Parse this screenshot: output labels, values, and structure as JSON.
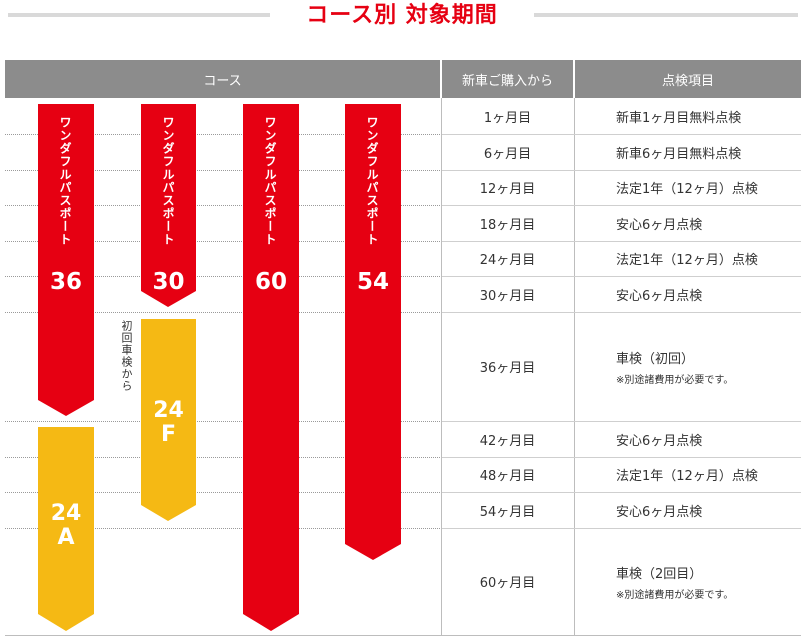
{
  "title": "コース別 対象期間",
  "header": {
    "course": "コース",
    "months": "新車ご購入から",
    "items": "点検項目"
  },
  "rows": [
    {
      "month": "1ヶ月目",
      "item": "新車1ヶ月目無料点検",
      "note": ""
    },
    {
      "month": "6ヶ月目",
      "item": "新車6ヶ月目無料点検",
      "note": ""
    },
    {
      "month": "12ヶ月目",
      "item": "法定1年（12ヶ月）点検",
      "note": ""
    },
    {
      "month": "18ヶ月目",
      "item": "安心6ヶ月点検",
      "note": ""
    },
    {
      "month": "24ヶ月目",
      "item": "法定1年（12ヶ月）点検",
      "note": ""
    },
    {
      "month": "30ヶ月目",
      "item": "安心6ヶ月点検",
      "note": ""
    },
    {
      "month": "36ヶ月目",
      "item": "車検（初回）",
      "note": "※別途諸費用が必要です。"
    },
    {
      "month": "42ヶ月目",
      "item": "安心6ヶ月点検",
      "note": ""
    },
    {
      "month": "48ヶ月目",
      "item": "法定1年（12ヶ月）点検",
      "note": ""
    },
    {
      "month": "54ヶ月目",
      "item": "安心6ヶ月点検",
      "note": ""
    },
    {
      "month": "60ヶ月目",
      "item": "車検（2回目）",
      "note": "※別途諸費用が必要です。"
    }
  ],
  "courses": {
    "c36": {
      "name": "ワンダフルパスポート",
      "num": "36"
    },
    "c30": {
      "name": "ワンダフルパスポート",
      "num": "30"
    },
    "c60": {
      "name": "ワンダフルパスポート",
      "num": "60"
    },
    "c54": {
      "name": "ワンダフルパスポート",
      "num": "54"
    },
    "c24a": {
      "num": "24",
      "letter": "A"
    },
    "c24f": {
      "num": "24",
      "letter": "F",
      "note": "初回車検から"
    }
  },
  "colors": {
    "red": "#e60012",
    "yellow": "#f5b914",
    "header": "#8c8c8c"
  }
}
